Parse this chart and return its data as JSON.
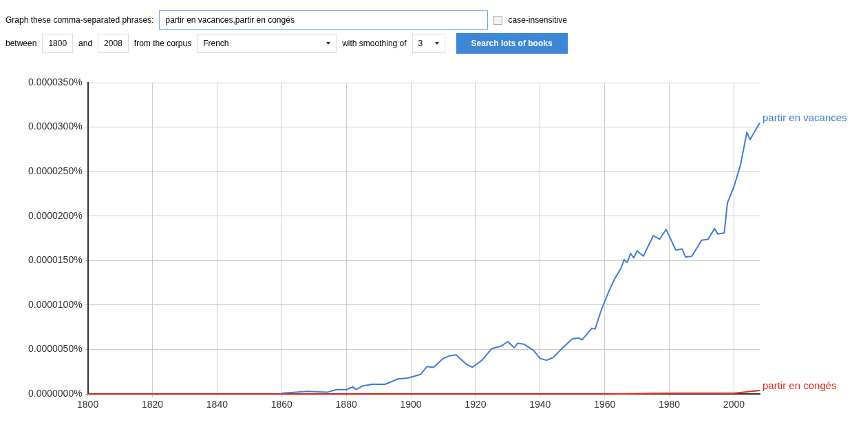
{
  "chart_data": {
    "type": "line",
    "annotations": [
      "Graph these comma-separated phrases:",
      "partir en vacances,partir en congés",
      "case-insensitive",
      "between",
      "1800",
      "and",
      "2008",
      "from the corpus",
      "French",
      "with smoothing of",
      "3",
      "Search lots of books"
    ],
    "xlim": [
      1800,
      2008
    ],
    "xticks": [
      1800,
      1820,
      1840,
      1860,
      1880,
      1900,
      1920,
      1940,
      1960,
      1980,
      2000
    ],
    "ylim": [
      0,
      3.5e-05
    ],
    "yticks": [
      {
        "value": 0,
        "label": "0.0000000%"
      },
      {
        "value": 5e-06,
        "label": "0.0000050%"
      },
      {
        "value": 1e-05,
        "label": "0.0000100%"
      },
      {
        "value": 1.5e-05,
        "label": "0.0000150%"
      },
      {
        "value": 2e-05,
        "label": "0.0000200%"
      },
      {
        "value": 2.5e-05,
        "label": "0.0000250%"
      },
      {
        "value": 3e-05,
        "label": "0.0000300%"
      },
      {
        "value": 3.5e-05,
        "label": "0.0000350%"
      }
    ],
    "grid": true,
    "legend": false,
    "marker": "none",
    "series": [
      {
        "name": "partir en vacances",
        "color": "#3d7dd8",
        "x": [
          1860,
          1868,
          1874,
          1877,
          1880,
          1882,
          1883,
          1885,
          1888,
          1892,
          1896,
          1899,
          1903,
          1905,
          1907,
          1910,
          1912,
          1914,
          1917,
          1919,
          1922,
          1925,
          1928,
          1930,
          1932,
          1933,
          1935,
          1938,
          1940,
          1942,
          1944,
          1947,
          1950,
          1952,
          1953,
          1956,
          1957,
          1959,
          1961,
          1963,
          1965,
          1966,
          1967,
          1968,
          1969,
          1970,
          1972,
          1975,
          1977,
          1979,
          1982,
          1984,
          1985,
          1987,
          1989,
          1990,
          1992,
          1993,
          1994,
          1995,
          1997,
          1998,
          2000,
          2002,
          2004,
          2005,
          2008
        ],
        "values": [
          1e-07,
          3e-07,
          2e-07,
          5e-07,
          5e-07,
          8e-07,
          5e-07,
          9e-07,
          1.1e-06,
          1.1e-06,
          1.7e-06,
          1.8e-06,
          2.2e-06,
          3.1e-06,
          3e-06,
          4e-06,
          4.3e-06,
          4.4e-06,
          3.4e-06,
          3e-06,
          3.8e-06,
          5.1e-06,
          5.4e-06,
          5.9e-06,
          5.2e-06,
          5.7e-06,
          5.6e-06,
          4.9e-06,
          4e-06,
          3.8e-06,
          4.1e-06,
          5.2e-06,
          6.2e-06,
          6.3e-06,
          6.1e-06,
          7.4e-06,
          7.3e-06,
          9.5e-06,
          1.13e-05,
          1.29e-05,
          1.41e-05,
          1.51e-05,
          1.48e-05,
          1.58e-05,
          1.53e-05,
          1.61e-05,
          1.55e-05,
          1.78e-05,
          1.74e-05,
          1.85e-05,
          1.62e-05,
          1.63e-05,
          1.54e-05,
          1.55e-05,
          1.67e-05,
          1.73e-05,
          1.74e-05,
          1.8e-05,
          1.86e-05,
          1.8e-05,
          1.81e-05,
          2.15e-05,
          2.33e-05,
          2.57e-05,
          2.94e-05,
          2.86e-05,
          3.05e-05
        ]
      },
      {
        "name": "partir en congés",
        "color": "#e8291c",
        "x": [
          1800,
          1960,
          1980,
          2000,
          2008
        ],
        "values": [
          0,
          0,
          1e-07,
          1e-07,
          4e-07
        ]
      }
    ]
  }
}
